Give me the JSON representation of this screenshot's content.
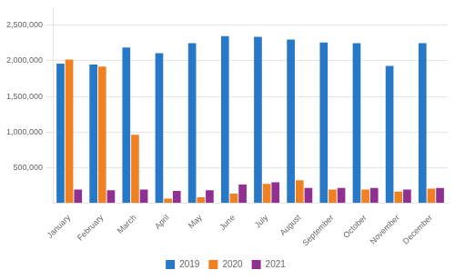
{
  "chart_data": {
    "type": "bar",
    "categories": [
      "January",
      "February",
      "March",
      "April",
      "May",
      "June",
      "July",
      "August",
      "September",
      "October",
      "November",
      "December"
    ],
    "series": [
      {
        "name": "2019",
        "color": "#2878C8",
        "values": [
          1960000,
          1950000,
          2190000,
          2110000,
          2250000,
          2350000,
          2340000,
          2300000,
          2260000,
          2250000,
          1930000,
          2250000
        ]
      },
      {
        "name": "2020",
        "color": "#F08020",
        "values": [
          2020000,
          1920000,
          960000,
          60000,
          80000,
          130000,
          270000,
          320000,
          190000,
          190000,
          160000,
          200000
        ]
      },
      {
        "name": "2021",
        "color": "#903090",
        "values": [
          190000,
          180000,
          190000,
          170000,
          180000,
          260000,
          290000,
          210000,
          210000,
          210000,
          190000,
          210000
        ]
      }
    ],
    "ylim": [
      0,
      2750000
    ],
    "yticks": [
      {
        "value": 500000,
        "label": "500,000"
      },
      {
        "value": 1000000,
        "label": "1,000,000"
      },
      {
        "value": 1500000,
        "label": "1,500,000"
      },
      {
        "value": 2000000,
        "label": "2,000,000"
      },
      {
        "value": 2500000,
        "label": "2,500,000"
      }
    ],
    "grid": true,
    "legend": "bottom"
  }
}
